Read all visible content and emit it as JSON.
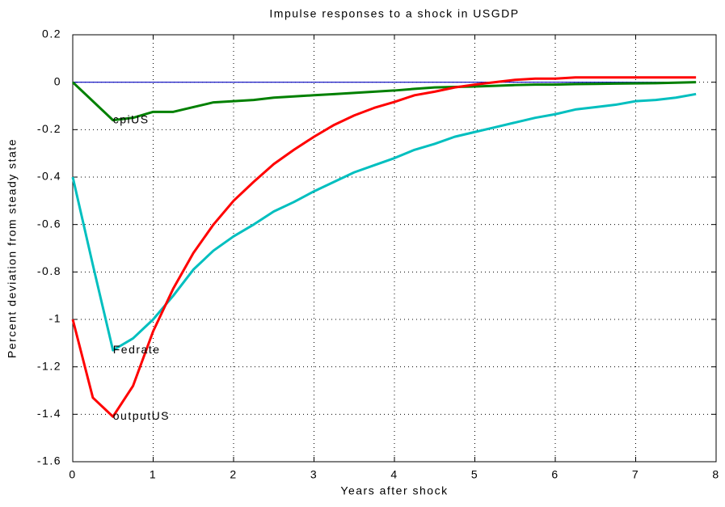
{
  "chart_data": {
    "type": "line",
    "title": "Impulse responses to a shock in USGDP",
    "x_label": "Years after shock",
    "y_label": "Percent deviation from steady state",
    "x": [
      0,
      0.25,
      0.5,
      0.75,
      1,
      1.25,
      1.5,
      1.75,
      2,
      2.25,
      2.5,
      2.75,
      3,
      3.25,
      3.5,
      3.75,
      4,
      4.25,
      4.5,
      4.75,
      5,
      5.25,
      5.5,
      5.75,
      6,
      6.25,
      6.5,
      6.75,
      7,
      7.25,
      7.5,
      7.75
    ],
    "series": [
      {
        "name": "cpiUS",
        "color": "#008000",
        "values": [
          0,
          -0.08,
          -0.16,
          -0.15,
          -0.125,
          -0.125,
          -0.105,
          -0.085,
          -0.08,
          -0.075,
          -0.065,
          -0.06,
          -0.055,
          -0.05,
          -0.045,
          -0.04,
          -0.035,
          -0.028,
          -0.022,
          -0.02,
          -0.018,
          -0.015,
          -0.012,
          -0.01,
          -0.01,
          -0.008,
          -0.007,
          -0.006,
          -0.005,
          -0.004,
          -0.002,
          0
        ]
      },
      {
        "name": "Fedrate",
        "color": "#00bfbf",
        "values": [
          -0.4,
          -0.77,
          -1.13,
          -1.08,
          -1.0,
          -0.9,
          -0.79,
          -0.71,
          -0.65,
          -0.6,
          -0.545,
          -0.505,
          -0.46,
          -0.42,
          -0.38,
          -0.35,
          -0.32,
          -0.285,
          -0.26,
          -0.23,
          -0.21,
          -0.19,
          -0.17,
          -0.15,
          -0.135,
          -0.115,
          -0.105,
          -0.095,
          -0.08,
          -0.075,
          -0.065,
          -0.05
        ]
      },
      {
        "name": "outputUS",
        "color": "#ff0000",
        "values": [
          -1.0,
          -1.33,
          -1.41,
          -1.28,
          -1.05,
          -0.87,
          -0.72,
          -0.6,
          -0.5,
          -0.42,
          -0.345,
          -0.285,
          -0.23,
          -0.18,
          -0.14,
          -0.108,
          -0.083,
          -0.055,
          -0.04,
          -0.022,
          -0.01,
          0,
          0.01,
          0.015,
          0.015,
          0.02,
          0.02,
          0.02,
          0.02,
          0.02,
          0.02,
          0.02
        ]
      }
    ],
    "reference_line": {
      "value": 0,
      "color": "#0000bf"
    },
    "xlim": [
      0,
      8
    ],
    "xticks": [
      0,
      1,
      2,
      3,
      4,
      5,
      6,
      7,
      8
    ],
    "ylim": [
      -1.6,
      0.2
    ],
    "yticks": [
      0.2,
      0,
      -0.2,
      -0.4,
      -0.6,
      -0.8,
      -1,
      -1.2,
      -1.4,
      -1.6
    ],
    "grid": true
  }
}
